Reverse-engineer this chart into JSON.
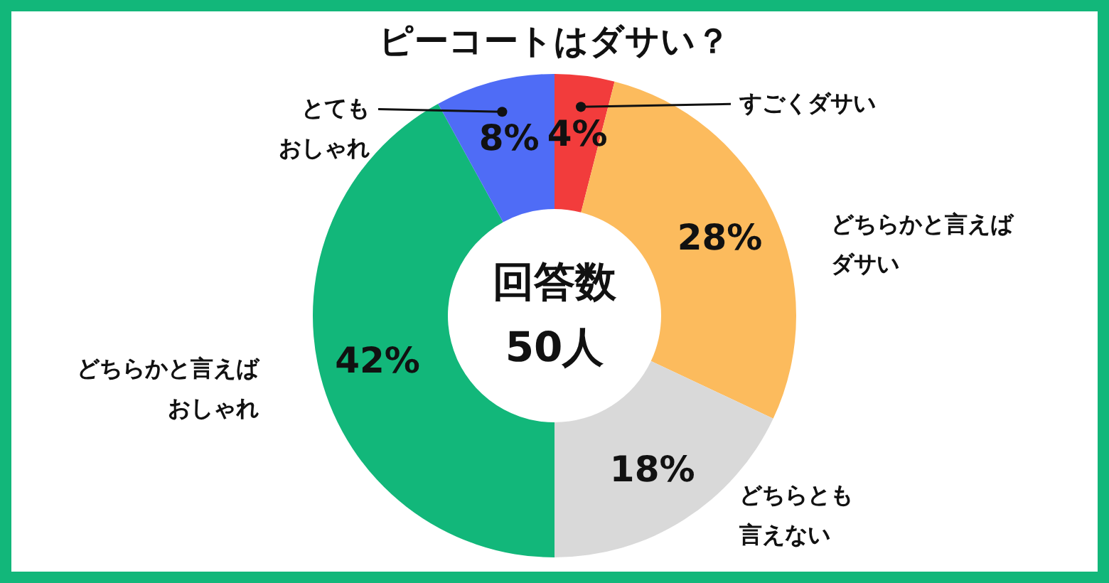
{
  "chart_data": {
    "type": "donut",
    "title": "ピーコートはダサい？",
    "categories": [
      "すごくダサい",
      "どちらかと言えばダサい",
      "どちらとも言えない",
      "どちらかと言えばおしゃれ",
      "とてもおしゃれ"
    ],
    "values": [
      4,
      28,
      18,
      42,
      8
    ],
    "colors": [
      "#f23c3c",
      "#fcbb5d",
      "#d9d9d9",
      "#12b77a",
      "#4f6cf6"
    ],
    "value_labels": [
      "4%",
      "28%",
      "18%",
      "42%",
      "8%"
    ],
    "annotations": [
      "回答数",
      "50人"
    ]
  }
}
